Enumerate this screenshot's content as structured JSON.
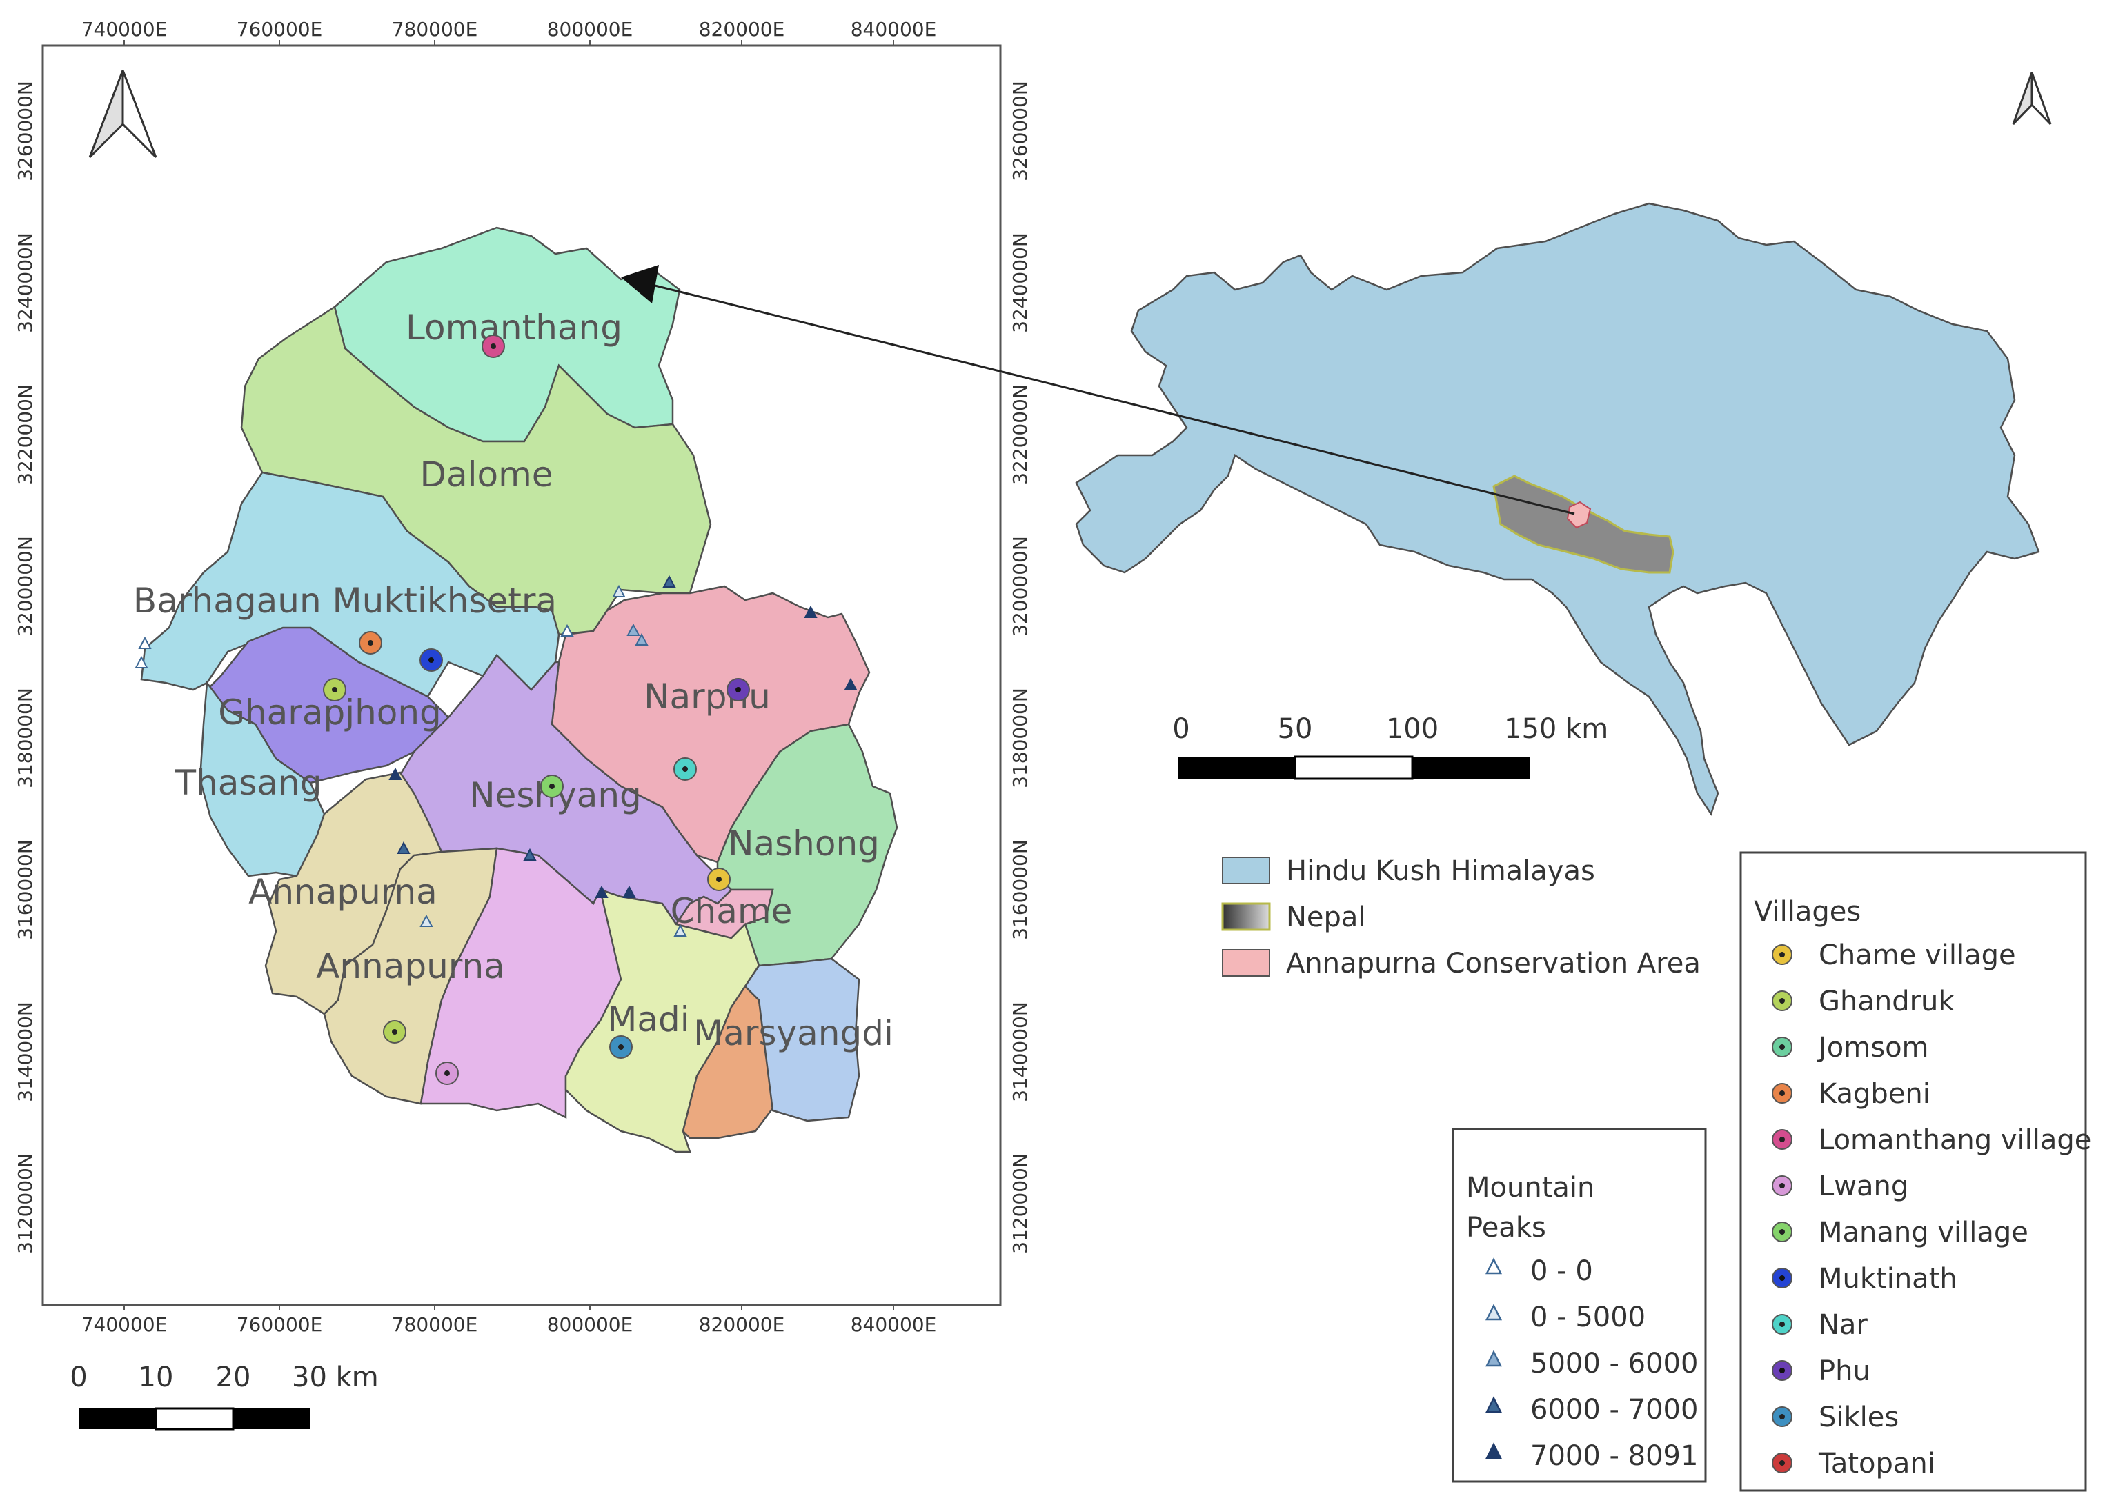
{
  "map": {
    "x_ticks": [
      "740000E",
      "760000E",
      "780000E",
      "800000E",
      "820000E",
      "840000E"
    ],
    "y_ticks": [
      "3260000N",
      "3240000N",
      "3220000N",
      "3200000N",
      "3180000N",
      "3160000N",
      "3140000N",
      "3120000N"
    ],
    "regions": [
      {
        "name": "Lomanthang",
        "color": "#a7eed0"
      },
      {
        "name": "Dalome",
        "color": "#c2e6a2"
      },
      {
        "name": "Barhagaun Muktikhsetra",
        "color": "#a9dde9"
      },
      {
        "name": "Gharapjhong",
        "color": "#9e8ee8"
      },
      {
        "name": "Thasang",
        "color": "#a9dde9"
      },
      {
        "name": "Narphu",
        "color": "#efafbb"
      },
      {
        "name": "Neshyang",
        "color": "#c4a8e8"
      },
      {
        "name": "Nashong",
        "color": "#a8e2b3"
      },
      {
        "name": "Chame",
        "color": "#efb5cb"
      },
      {
        "name": "Annapurna",
        "color": "#e6ddb2"
      },
      {
        "name": "Annapurna",
        "color": "#e6ddb2"
      },
      {
        "name": "Madi",
        "color": "#e3efb4"
      },
      {
        "name": "Marsyangdi",
        "color": "#b3cdee"
      }
    ],
    "scale_labels": [
      "0",
      "10",
      "20",
      "30 km"
    ]
  },
  "inset": {
    "scale_labels": [
      "0",
      "50",
      "100",
      "150 km"
    ]
  },
  "legend_areas": {
    "items": [
      {
        "label": "Hindu Kush Himalayas",
        "color": "#a9cfe2"
      },
      {
        "label": "Nepal",
        "color": "#8a8a8a"
      },
      {
        "label": "Annapurna Conservation Area",
        "color": "#f4b7b9"
      }
    ]
  },
  "legend_peaks": {
    "title_line1": "Mountain",
    "title_line2": "Peaks",
    "items": [
      {
        "label": "0 - 0",
        "color": "#ffffff"
      },
      {
        "label": "0 - 5000",
        "color": "#dce8f2"
      },
      {
        "label": "5000 - 6000",
        "color": "#8fb1d2"
      },
      {
        "label": "6000 - 7000",
        "color": "#3d6895"
      },
      {
        "label": "7000 - 8091",
        "color": "#1f3b6b"
      }
    ]
  },
  "legend_villages": {
    "title": "Villages",
    "items": [
      {
        "label": "Chame village",
        "color": "#e7c23d"
      },
      {
        "label": "Ghandruk",
        "color": "#b3d25a"
      },
      {
        "label": "Jomsom",
        "color": "#6ccf9f"
      },
      {
        "label": "Kagbeni",
        "color": "#e8844a"
      },
      {
        "label": "Lomanthang village",
        "color": "#d44d8e"
      },
      {
        "label": "Lwang",
        "color": "#d799d8"
      },
      {
        "label": "Manang village",
        "color": "#85d36b"
      },
      {
        "label": "Muktinath",
        "color": "#2444d4"
      },
      {
        "label": "Nar",
        "color": "#4fd3c8"
      },
      {
        "label": "Phu",
        "color": "#6a3fb5"
      },
      {
        "label": "Sikles",
        "color": "#3d8fc0"
      },
      {
        "label": "Tatopani",
        "color": "#cc3b3b"
      }
    ]
  }
}
